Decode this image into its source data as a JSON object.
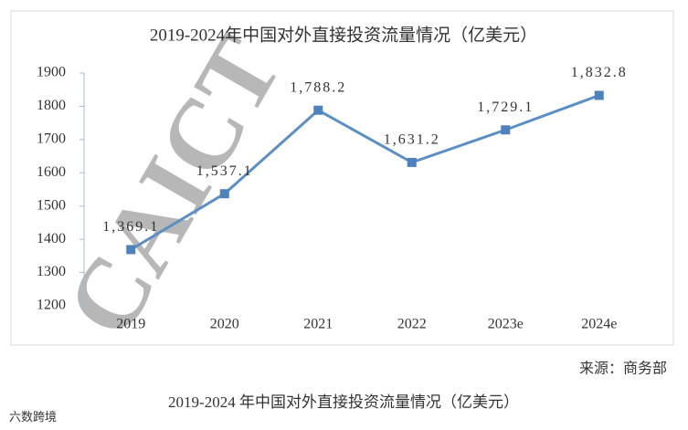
{
  "watermark": "CAICT",
  "source": "来源：商务部",
  "caption": "2019-2024 年中国对外直接投资流量情况（亿美元）",
  "logo": "六数跨境",
  "chart_data": {
    "type": "line",
    "title": "2019-2024年中国对外直接投资流量情况（亿美元）",
    "categories": [
      "2019",
      "2020",
      "2021",
      "2022",
      "2023e",
      "2024e"
    ],
    "values": [
      1369.1,
      1537.1,
      1788.2,
      1631.2,
      1729.1,
      1832.8
    ],
    "value_labels": [
      "1,369.1",
      "1,537.1",
      "1,788.2",
      "1,631.2",
      "1,729.1",
      "1,832.8"
    ],
    "color": "#5b8fc4",
    "ylim": [
      1200,
      1900
    ],
    "yticks": [
      1200,
      1300,
      1400,
      1500,
      1600,
      1700,
      1800,
      1900
    ],
    "grid": false
  }
}
